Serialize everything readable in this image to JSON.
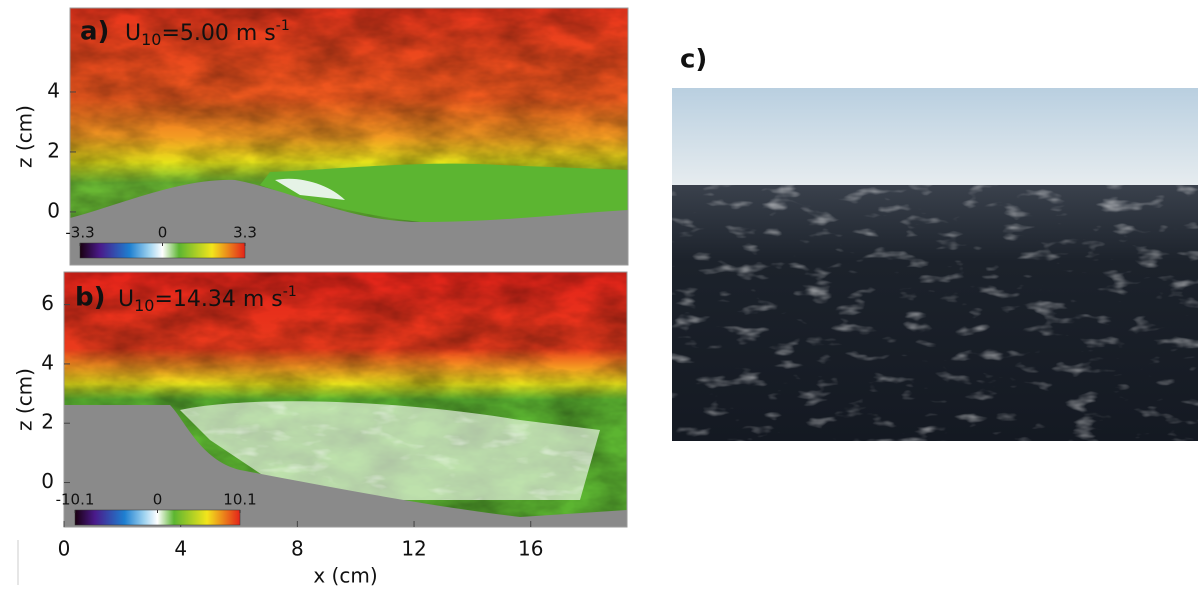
{
  "panels": [
    {
      "label": "a)",
      "title": {
        "base": "U",
        "sub": "10",
        "text": "=5.00 m s",
        "sup": "-1"
      },
      "ylabel": "z (cm)",
      "ylim": [
        -1.77,
        6.8
      ],
      "yticks": [
        0,
        2,
        4
      ],
      "colorbar": {
        "clim": [
          -3.3,
          3.3
        ],
        "ticks": [
          -3.3,
          0,
          3.3
        ]
      }
    },
    {
      "label": "b)",
      "title": {
        "base": "U",
        "sub": "10",
        "text": "=14.34 m s",
        "sup": "-1"
      },
      "ylabel": "z (cm)",
      "xlabel": "x (cm)",
      "xlim": [
        0,
        19.3
      ],
      "xticks": [
        0,
        4,
        8,
        12,
        16
      ],
      "ylim": [
        -1.5,
        7.1
      ],
      "yticks": [
        0,
        2,
        4,
        6
      ],
      "colorbar": {
        "clim": [
          -10.1,
          10.1
        ],
        "ticks": [
          -10.1,
          0,
          10.1
        ]
      }
    },
    {
      "label": "c)"
    }
  ]
}
